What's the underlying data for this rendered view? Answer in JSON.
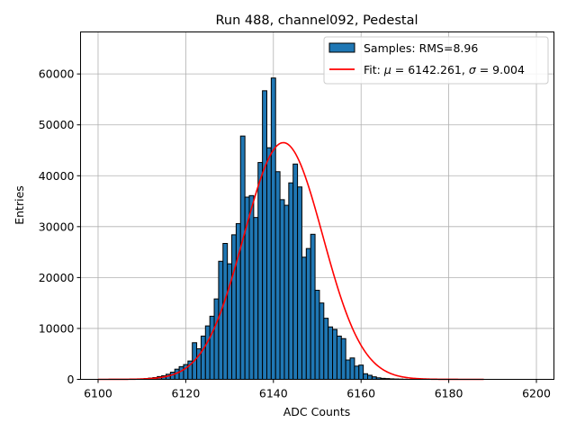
{
  "chart_data": {
    "type": "bar",
    "title": "Run 488, channel092, Pedestal",
    "xlabel": "ADC Counts",
    "ylabel": "Entries",
    "xlim": [
      6096,
      6204
    ],
    "ylim": [
      0,
      68250
    ],
    "x_ticks": [
      6100,
      6120,
      6140,
      6160,
      6180,
      6200
    ],
    "y_ticks": [
      0,
      10000,
      20000,
      30000,
      40000,
      50000,
      60000
    ],
    "grid": true,
    "legend_position": "top-right",
    "bin_width": 1,
    "histogram": {
      "name": "Samples: RMS=8.96",
      "color": "#1f77b4",
      "edge_color": "#000000",
      "bins": [
        6111,
        6112,
        6113,
        6114,
        6115,
        6116,
        6117,
        6118,
        6119,
        6120,
        6121,
        6122,
        6123,
        6124,
        6125,
        6126,
        6127,
        6128,
        6129,
        6130,
        6131,
        6132,
        6133,
        6134,
        6135,
        6136,
        6137,
        6138,
        6139,
        6140,
        6141,
        6142,
        6143,
        6144,
        6145,
        6146,
        6147,
        6148,
        6149,
        6150,
        6151,
        6152,
        6153,
        6154,
        6155,
        6156,
        6157,
        6158,
        6159,
        6160,
        6161,
        6162,
        6163,
        6164,
        6165,
        6166,
        6167,
        6168,
        6169,
        6170
      ],
      "counts": [
        150,
        250,
        350,
        550,
        700,
        1000,
        1400,
        2000,
        2500,
        2900,
        3600,
        7200,
        6000,
        8500,
        10500,
        12400,
        15800,
        23200,
        26700,
        22700,
        28400,
        30600,
        47800,
        35800,
        36100,
        31800,
        42600,
        56700,
        45500,
        59200,
        40800,
        35300,
        34200,
        38600,
        42300,
        37800,
        24000,
        25700,
        28500,
        17500,
        15000,
        12000,
        10300,
        9800,
        8500,
        8000,
        3800,
        4200,
        2600,
        2800,
        1100,
        800,
        500,
        300,
        200,
        150,
        100,
        70,
        50,
        30
      ]
    },
    "fit": {
      "name": "Fit: $\\mu$ = 6142.261, $\\sigma$ = 9.004",
      "mu": 6142.261,
      "sigma": 9.004,
      "amplitude": 46500,
      "x_range": [
        6100,
        6188
      ],
      "color": "#ff0000"
    },
    "legend": {
      "hist_label": "Samples: RMS=8.96",
      "fit_prefix": "Fit: ",
      "fit_mu_symbol": "μ",
      "fit_mu_text": " = 6142.261, ",
      "fit_sigma_symbol": "σ",
      "fit_sigma_text": " = 9.004"
    }
  }
}
